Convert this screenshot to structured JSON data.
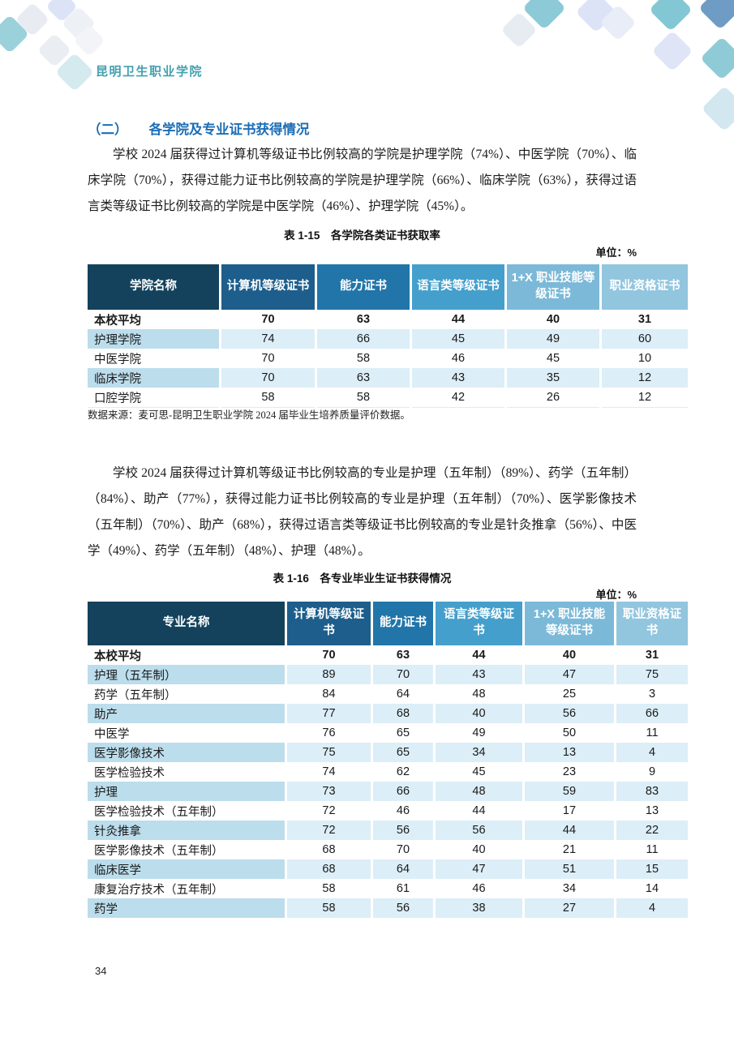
{
  "header": {
    "logo_text": "昆明卫生职业学院"
  },
  "section": {
    "heading_number": "（二）",
    "heading_title": "各学院及专业证书获得情况",
    "paragraph1": "学校 2024 届获得过计算机等级证书比例较高的学院是护理学院（74%）、中医学院（70%）、临床学院（70%），获得过能力证书比例较高的学院是护理学院（66%）、临床学院（63%），获得过语言类等级证书比例较高的学院是中医学院（46%）、护理学院（45%）。",
    "paragraph2": "学校 2024 届获得过计算机等级证书比例较高的专业是护理（五年制）（89%）、药学（五年制）（84%）、助产（77%），获得过能力证书比例较高的专业是护理（五年制）（70%）、医学影像技术（五年制）（70%）、助产（68%），获得过语言类等级证书比例较高的专业是针灸推拿（56%）、中医学（49%）、药学（五年制）（48%）、护理（48%）。"
  },
  "table1": {
    "caption": "表 1-15　各学院各类证书获取率",
    "unit_label": "单位：%",
    "headers": [
      "学院名称",
      "计算机等级证书",
      "能力证书",
      "语言类等级证书",
      "1+X 职业技能等级证书",
      "职业资格证书"
    ],
    "rows": [
      [
        "本校平均",
        "70",
        "63",
        "44",
        "40",
        "31"
      ],
      [
        "护理学院",
        "74",
        "66",
        "45",
        "49",
        "60"
      ],
      [
        "中医学院",
        "70",
        "58",
        "46",
        "45",
        "10"
      ],
      [
        "临床学院",
        "70",
        "63",
        "43",
        "35",
        "12"
      ],
      [
        "口腔学院",
        "58",
        "58",
        "42",
        "26",
        "12"
      ]
    ],
    "source_note": "数据来源：麦可思-昆明卫生职业学院 2024 届毕业生培养质量评价数据。"
  },
  "table2": {
    "caption": "表 1-16　各专业毕业生证书获得情况",
    "unit_label": "单位：%",
    "headers": [
      "专业名称",
      "计算机等级证书",
      "能力证书",
      "语言类等级证书",
      "1+X 职业技能等级证书",
      "职业资格证书"
    ],
    "rows": [
      [
        "本校平均",
        "70",
        "63",
        "44",
        "40",
        "31"
      ],
      [
        "护理（五年制）",
        "89",
        "70",
        "43",
        "47",
        "75"
      ],
      [
        "药学（五年制）",
        "84",
        "64",
        "48",
        "25",
        "3"
      ],
      [
        "助产",
        "77",
        "68",
        "40",
        "56",
        "66"
      ],
      [
        "中医学",
        "76",
        "65",
        "49",
        "50",
        "11"
      ],
      [
        "医学影像技术",
        "75",
        "65",
        "34",
        "13",
        "4"
      ],
      [
        "医学检验技术",
        "74",
        "62",
        "45",
        "23",
        "9"
      ],
      [
        "护理",
        "73",
        "66",
        "48",
        "59",
        "83"
      ],
      [
        "医学检验技术（五年制）",
        "72",
        "46",
        "44",
        "17",
        "13"
      ],
      [
        "针灸推拿",
        "72",
        "56",
        "56",
        "44",
        "22"
      ],
      [
        "医学影像技术（五年制）",
        "68",
        "70",
        "40",
        "21",
        "11"
      ],
      [
        "临床医学",
        "68",
        "64",
        "47",
        "51",
        "15"
      ],
      [
        "康复治疗技术（五年制）",
        "58",
        "61",
        "46",
        "34",
        "14"
      ],
      [
        "药学",
        "58",
        "56",
        "38",
        "27",
        "4"
      ]
    ]
  },
  "footer": {
    "page_number": "34"
  },
  "colors": {
    "header_gradient": [
      "#14425C",
      "#1D5E8C",
      "#2175A9",
      "#449FCC",
      "#7CB9D8",
      "#92C5DE"
    ],
    "zebra_name": "#BCDDEC",
    "zebra_value": "#DCEEF7",
    "heading_blue": "#1C6EB6",
    "logo_teal": "#44A0B0"
  }
}
